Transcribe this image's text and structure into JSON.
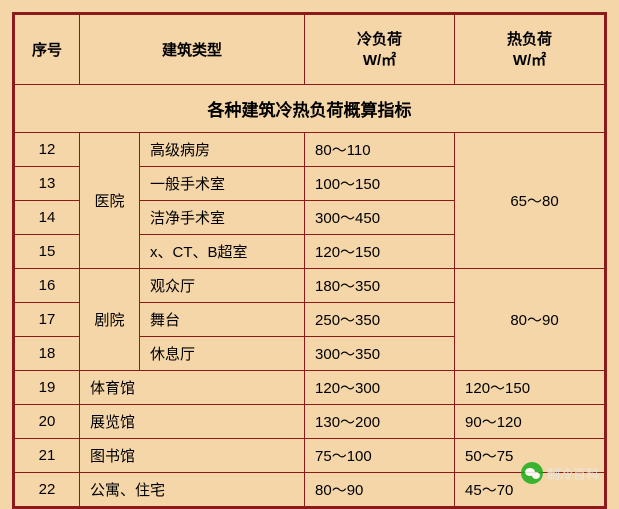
{
  "title": "各种建筑冷热负荷概算指标",
  "headers": {
    "seq": "序号",
    "btype": "建筑类型",
    "cold": "冷负荷",
    "cold_unit": "W/㎡",
    "hot": "热负荷",
    "hot_unit": "W/㎡"
  },
  "groups": [
    {
      "category": "医院",
      "hot": "65～80",
      "hot_span": 4,
      "hot_start": 0,
      "rows": [
        {
          "seq": "12",
          "btype": "高级病房",
          "cold": "80～110"
        },
        {
          "seq": "13",
          "btype": "一般手术室",
          "cold": "100～150"
        },
        {
          "seq": "14",
          "btype": "洁净手术室",
          "cold": "300～450"
        },
        {
          "seq": "15",
          "btype": "x、CT、B超室",
          "cold": "120～150"
        }
      ]
    },
    {
      "category": "剧院",
      "hot": "80～90",
      "hot_span": 3,
      "hot_start": 0,
      "rows": [
        {
          "seq": "16",
          "btype": "观众厅",
          "cold": "180～350"
        },
        {
          "seq": "17",
          "btype": "舞台",
          "cold": "250～350"
        },
        {
          "seq": "18",
          "btype": "休息厅",
          "cold": "300～350"
        }
      ]
    }
  ],
  "simple_rows": [
    {
      "seq": "19",
      "btype": "体育馆",
      "cold": "120～300",
      "hot": "120～150"
    },
    {
      "seq": "20",
      "btype": "展览馆",
      "cold": "130～200",
      "hot": "90～120"
    },
    {
      "seq": "21",
      "btype": "图书馆",
      "cold": "75～100",
      "hot": "50～75"
    },
    {
      "seq": "22",
      "btype": "公寓、住宅",
      "cold": "80～90",
      "hot": "45～70"
    }
  ],
  "watermark": "制冷百科",
  "col_widths": {
    "seq": 65,
    "cat": 60,
    "btype": 165,
    "cold": 150,
    "hot": 150
  },
  "colors": {
    "bg": "#f5d6a9",
    "border": "#8b1a1a",
    "wm_green": "#1aad19"
  }
}
